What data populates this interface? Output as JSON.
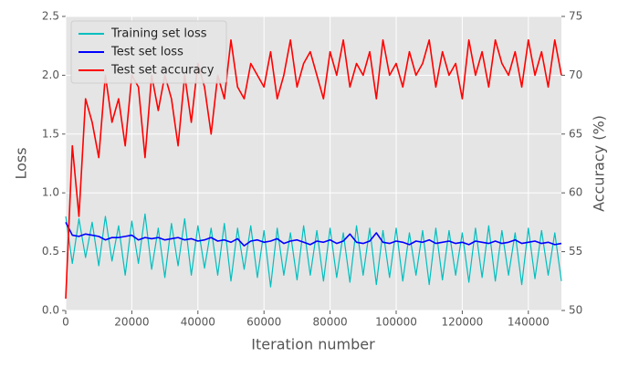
{
  "chart_data": {
    "type": "line",
    "xlabel": "Iteration number",
    "ylabel": "Loss",
    "y2label": "Accuracy (%)",
    "xlim": [
      0,
      150000
    ],
    "ylim": [
      0,
      2.5
    ],
    "y2lim": [
      50,
      75
    ],
    "xticks": [
      0,
      20000,
      40000,
      60000,
      80000,
      100000,
      120000,
      140000
    ],
    "yticks": [
      {
        "value": 0,
        "label": "0.0"
      },
      {
        "value": 0.5,
        "label": "0.5"
      },
      {
        "value": 1,
        "label": "1.0"
      },
      {
        "value": 1.5,
        "label": "1.5"
      },
      {
        "value": 2,
        "label": "2.0"
      },
      {
        "value": 2.5,
        "label": "2.5"
      }
    ],
    "y2ticks": [
      50,
      55,
      60,
      65,
      70,
      75
    ],
    "grid": true,
    "legend": "upper left",
    "x": [
      0,
      2000,
      4000,
      6000,
      8000,
      10000,
      12000,
      14000,
      16000,
      18000,
      20000,
      22000,
      24000,
      26000,
      28000,
      30000,
      32000,
      34000,
      36000,
      38000,
      40000,
      42000,
      44000,
      46000,
      48000,
      50000,
      52000,
      54000,
      56000,
      58000,
      60000,
      62000,
      64000,
      66000,
      68000,
      70000,
      72000,
      74000,
      76000,
      78000,
      80000,
      82000,
      84000,
      86000,
      88000,
      90000,
      92000,
      94000,
      96000,
      98000,
      100000,
      102000,
      104000,
      106000,
      108000,
      110000,
      112000,
      114000,
      116000,
      118000,
      120000,
      122000,
      124000,
      126000,
      128000,
      130000,
      132000,
      134000,
      136000,
      138000,
      140000,
      142000,
      144000,
      146000,
      148000,
      150000
    ],
    "series": [
      {
        "name": "Training set loss",
        "color": "#00bfbf",
        "values": [
          0.8,
          0.4,
          0.78,
          0.45,
          0.75,
          0.38,
          0.8,
          0.42,
          0.72,
          0.3,
          0.76,
          0.4,
          0.82,
          0.35,
          0.7,
          0.28,
          0.74,
          0.38,
          0.78,
          0.3,
          0.72,
          0.36,
          0.7,
          0.3,
          0.74,
          0.25,
          0.7,
          0.35,
          0.72,
          0.28,
          0.68,
          0.2,
          0.7,
          0.3,
          0.66,
          0.26,
          0.72,
          0.3,
          0.68,
          0.25,
          0.7,
          0.28,
          0.66,
          0.24,
          0.72,
          0.3,
          0.7,
          0.22,
          0.68,
          0.28,
          0.7,
          0.25,
          0.66,
          0.3,
          0.68,
          0.22,
          0.7,
          0.26,
          0.68,
          0.3,
          0.66,
          0.24,
          0.7,
          0.28,
          0.72,
          0.25,
          0.68,
          0.3,
          0.66,
          0.22,
          0.7,
          0.27,
          0.68,
          0.3,
          0.66,
          0.25
        ]
      },
      {
        "name": "Test set loss",
        "color": "#0000ff",
        "values": [
          0.75,
          0.64,
          0.63,
          0.65,
          0.64,
          0.63,
          0.6,
          0.62,
          0.62,
          0.63,
          0.64,
          0.6,
          0.62,
          0.61,
          0.62,
          0.6,
          0.61,
          0.62,
          0.6,
          0.61,
          0.59,
          0.6,
          0.62,
          0.59,
          0.6,
          0.58,
          0.61,
          0.55,
          0.59,
          0.6,
          0.58,
          0.59,
          0.61,
          0.57,
          0.59,
          0.6,
          0.58,
          0.56,
          0.59,
          0.58,
          0.6,
          0.57,
          0.59,
          0.65,
          0.58,
          0.57,
          0.59,
          0.66,
          0.58,
          0.57,
          0.59,
          0.58,
          0.56,
          0.59,
          0.58,
          0.6,
          0.57,
          0.58,
          0.59,
          0.57,
          0.58,
          0.56,
          0.59,
          0.58,
          0.57,
          0.59,
          0.57,
          0.58,
          0.6,
          0.57,
          0.58,
          0.59,
          0.57,
          0.58,
          0.56,
          0.57
        ]
      },
      {
        "name": "Test set accuracy",
        "color": "#ff0000",
        "axis": "y2",
        "values": [
          51,
          64,
          58,
          68,
          66,
          63,
          70,
          66,
          68,
          64,
          70,
          69,
          63,
          70,
          67,
          70,
          68,
          64,
          70,
          66,
          71,
          69,
          65,
          70,
          68,
          73,
          69,
          68,
          71,
          70,
          69,
          72,
          68,
          70,
          73,
          69,
          71,
          72,
          70,
          68,
          72,
          70,
          73,
          69,
          71,
          70,
          72,
          68,
          73,
          70,
          71,
          69,
          72,
          70,
          71,
          73,
          69,
          72,
          70,
          71,
          68,
          73,
          70,
          72,
          69,
          73,
          71,
          70,
          72,
          69,
          73,
          70,
          72,
          69,
          73,
          70
        ]
      }
    ]
  }
}
